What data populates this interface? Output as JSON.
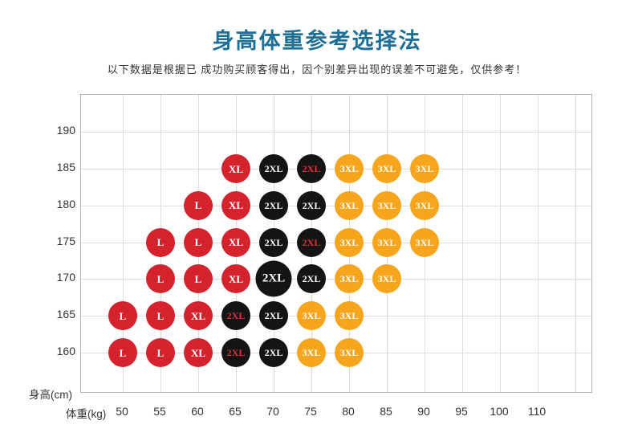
{
  "header": {
    "title": "身高体重参考选择法",
    "subtitle": "以下数据是根据已 成功购买顾客得出，因个别差异出现的误差不可避免，仅供参考！"
  },
  "chart_data": {
    "type": "scatter",
    "title": "身高体重参考选择法",
    "xlabel": "体重(kg)",
    "ylabel": "身高(cm)",
    "x_ticks": [
      50,
      55,
      60,
      65,
      70,
      75,
      80,
      85,
      90,
      95,
      100,
      110
    ],
    "y_ticks": [
      160,
      165,
      170,
      175,
      180,
      185,
      190
    ],
    "grid": "on",
    "legend_position": "none",
    "sizes": [
      "L",
      "XL",
      "2XL",
      "3XL"
    ],
    "colors": {
      "L": "#d5232e",
      "XL": "#d5232e",
      "2XL": "#141414",
      "3XL": "#f6a51c",
      "text": "#ffffff",
      "text_alt": "#e0313a",
      "title": "#1d6f96"
    },
    "points": [
      {
        "weight": 50,
        "height": 160,
        "size": "L"
      },
      {
        "weight": 55,
        "height": 160,
        "size": "L"
      },
      {
        "weight": 60,
        "height": 160,
        "size": "XL"
      },
      {
        "weight": 65,
        "height": 160,
        "size": "2XL",
        "text": "red"
      },
      {
        "weight": 70,
        "height": 160,
        "size": "2XL"
      },
      {
        "weight": 75,
        "height": 160,
        "size": "3XL"
      },
      {
        "weight": 80,
        "height": 160,
        "size": "3XL"
      },
      {
        "weight": 50,
        "height": 165,
        "size": "L"
      },
      {
        "weight": 55,
        "height": 165,
        "size": "L"
      },
      {
        "weight": 60,
        "height": 165,
        "size": "XL"
      },
      {
        "weight": 65,
        "height": 165,
        "size": "2XL",
        "text": "red"
      },
      {
        "weight": 70,
        "height": 165,
        "size": "2XL"
      },
      {
        "weight": 75,
        "height": 165,
        "size": "3XL"
      },
      {
        "weight": 80,
        "height": 165,
        "size": "3XL"
      },
      {
        "weight": 55,
        "height": 170,
        "size": "L"
      },
      {
        "weight": 60,
        "height": 170,
        "size": "L"
      },
      {
        "weight": 65,
        "height": 170,
        "size": "XL"
      },
      {
        "weight": 70,
        "height": 170,
        "size": "2XL",
        "big": true
      },
      {
        "weight": 75,
        "height": 170,
        "size": "2XL"
      },
      {
        "weight": 80,
        "height": 170,
        "size": "3XL"
      },
      {
        "weight": 85,
        "height": 170,
        "size": "3XL"
      },
      {
        "weight": 55,
        "height": 175,
        "size": "L"
      },
      {
        "weight": 60,
        "height": 175,
        "size": "L"
      },
      {
        "weight": 65,
        "height": 175,
        "size": "XL"
      },
      {
        "weight": 70,
        "height": 175,
        "size": "2XL"
      },
      {
        "weight": 75,
        "height": 175,
        "size": "2XL",
        "text": "red"
      },
      {
        "weight": 80,
        "height": 175,
        "size": "3XL"
      },
      {
        "weight": 85,
        "height": 175,
        "size": "3XL"
      },
      {
        "weight": 90,
        "height": 175,
        "size": "3XL"
      },
      {
        "weight": 60,
        "height": 180,
        "size": "L"
      },
      {
        "weight": 65,
        "height": 180,
        "size": "XL"
      },
      {
        "weight": 70,
        "height": 180,
        "size": "2XL"
      },
      {
        "weight": 75,
        "height": 180,
        "size": "2XL"
      },
      {
        "weight": 80,
        "height": 180,
        "size": "3XL"
      },
      {
        "weight": 85,
        "height": 180,
        "size": "3XL"
      },
      {
        "weight": 90,
        "height": 180,
        "size": "3XL"
      },
      {
        "weight": 65,
        "height": 185,
        "size": "XL"
      },
      {
        "weight": 70,
        "height": 185,
        "size": "2XL"
      },
      {
        "weight": 75,
        "height": 185,
        "size": "2XL",
        "text": "red"
      },
      {
        "weight": 80,
        "height": 185,
        "size": "3XL"
      },
      {
        "weight": 85,
        "height": 185,
        "size": "3XL"
      },
      {
        "weight": 90,
        "height": 185,
        "size": "3XL"
      }
    ]
  }
}
